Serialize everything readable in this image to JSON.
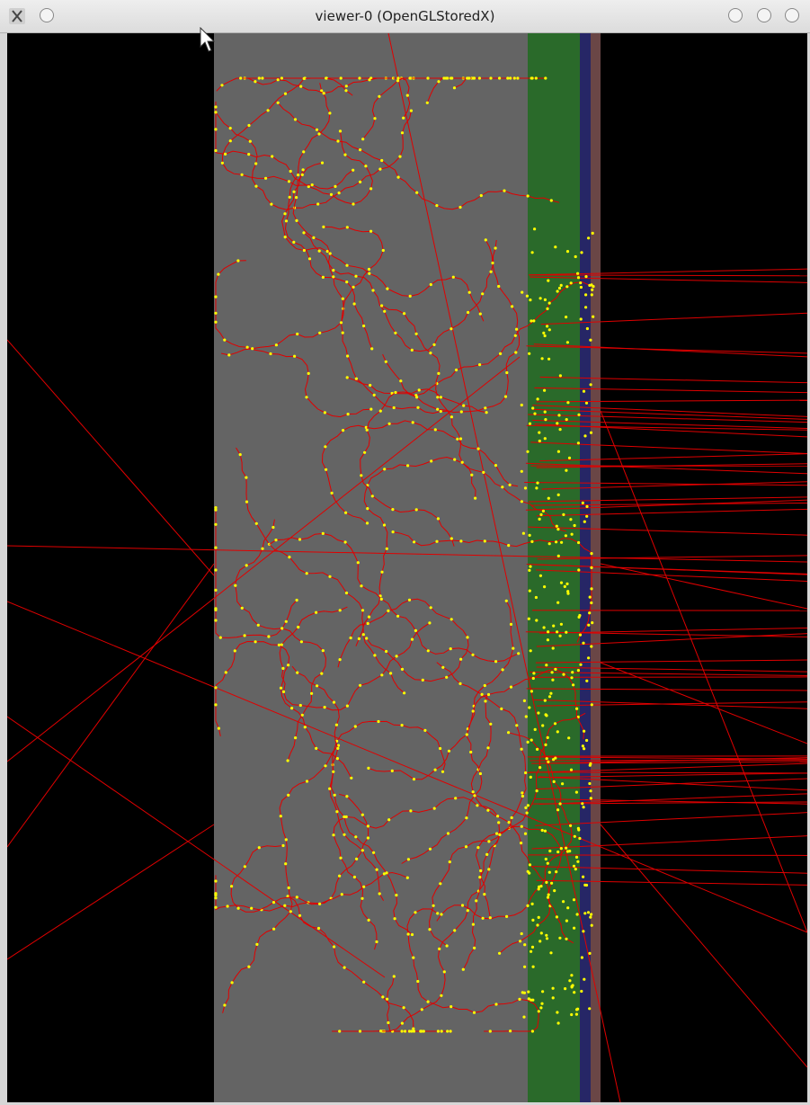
{
  "window": {
    "title": "viewer-0 (OpenGLStoredX)"
  }
}
